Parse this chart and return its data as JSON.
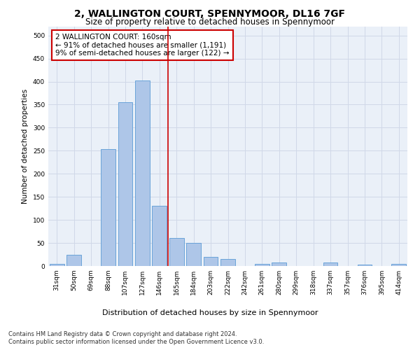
{
  "title1": "2, WALLINGTON COURT, SPENNYMOOR, DL16 7GF",
  "title2": "Size of property relative to detached houses in Spennymoor",
  "xlabel": "Distribution of detached houses by size in Spennymoor",
  "ylabel": "Number of detached properties",
  "categories": [
    "31sqm",
    "50sqm",
    "69sqm",
    "88sqm",
    "107sqm",
    "127sqm",
    "146sqm",
    "165sqm",
    "184sqm",
    "203sqm",
    "222sqm",
    "242sqm",
    "261sqm",
    "280sqm",
    "299sqm",
    "318sqm",
    "337sqm",
    "357sqm",
    "376sqm",
    "395sqm",
    "414sqm"
  ],
  "values": [
    5,
    25,
    0,
    253,
    355,
    402,
    130,
    60,
    50,
    20,
    15,
    0,
    5,
    7,
    0,
    0,
    7,
    0,
    3,
    0,
    5
  ],
  "bar_color": "#aec6e8",
  "bar_edge_color": "#5b9bd5",
  "vline_color": "#cc0000",
  "annotation_text": "2 WALLINGTON COURT: 160sqm\n← 91% of detached houses are smaller (1,191)\n9% of semi-detached houses are larger (122) →",
  "annotation_box_color": "#cc0000",
  "ylim": [
    0,
    520
  ],
  "yticks": [
    0,
    50,
    100,
    150,
    200,
    250,
    300,
    350,
    400,
    450,
    500
  ],
  "grid_color": "#d0d8e8",
  "background_color": "#eaf0f8",
  "footer1": "Contains HM Land Registry data © Crown copyright and database right 2024.",
  "footer2": "Contains public sector information licensed under the Open Government Licence v3.0.",
  "title1_fontsize": 10,
  "title2_fontsize": 8.5,
  "xlabel_fontsize": 8,
  "ylabel_fontsize": 7.5,
  "tick_fontsize": 6.5,
  "annotation_fontsize": 7.5,
  "footer_fontsize": 6.0
}
